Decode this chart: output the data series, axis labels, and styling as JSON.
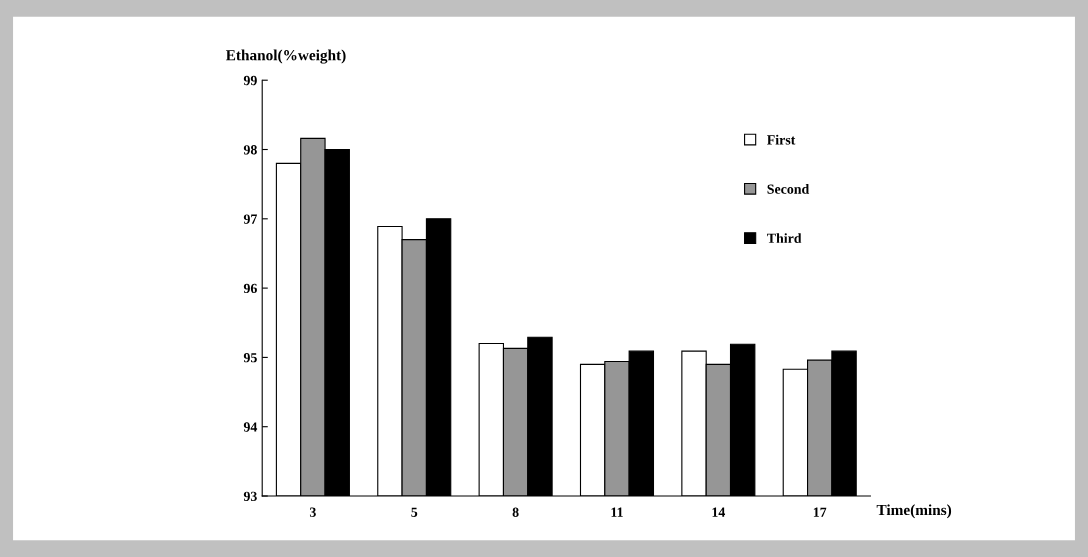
{
  "chart_data": {
    "type": "bar",
    "xlabel": "Time(mins)",
    "ylabel": "Ethanol(%weight)",
    "categories": [
      "3",
      "5",
      "8",
      "11",
      "14",
      "17"
    ],
    "series": [
      {
        "name": "First",
        "color": "#ffffff",
        "values": [
          97.8,
          96.89,
          95.2,
          94.9,
          95.09,
          94.83
        ]
      },
      {
        "name": "Second",
        "color": "#969696",
        "values": [
          98.16,
          96.7,
          95.13,
          94.94,
          94.9,
          94.96
        ]
      },
      {
        "name": "Third",
        "color": "#000000",
        "values": [
          98.0,
          97.0,
          95.29,
          95.09,
          95.19,
          95.09
        ]
      }
    ],
    "ylim": [
      93,
      99
    ],
    "yticks": [
      93,
      94,
      95,
      96,
      97,
      98,
      99
    ],
    "grid": false,
    "legend": "top right"
  }
}
